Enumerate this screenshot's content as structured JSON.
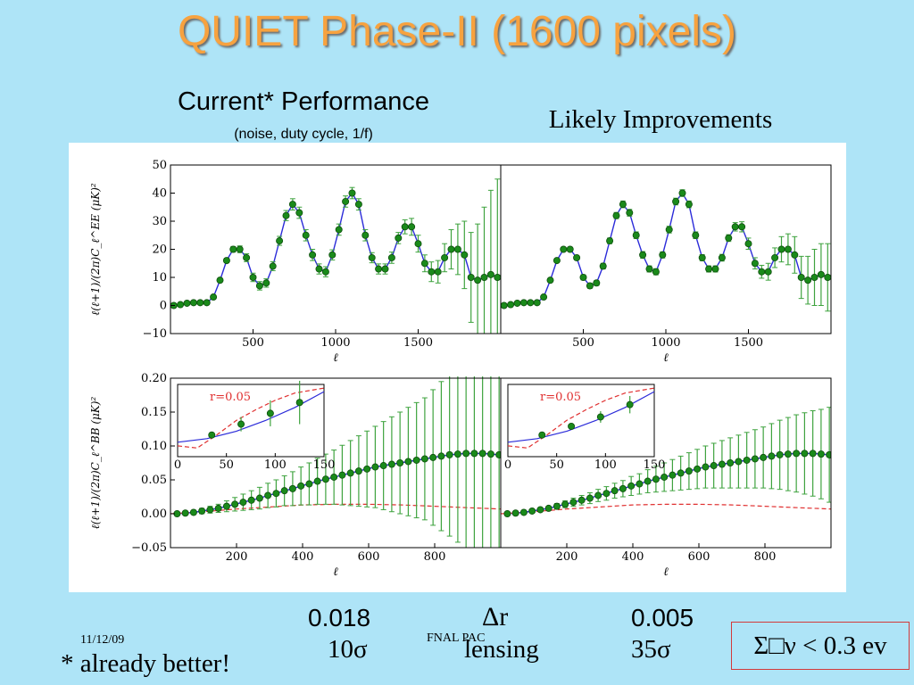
{
  "slide": {
    "title": "QUIET Phase-II (1600 pixels)",
    "left_heading": "Current* Performance",
    "left_note": "(noise, duty cycle, 1/f)",
    "right_heading": "Likely Improvements",
    "dr_left": "0.018",
    "dr_label": "Δr",
    "dr_right": "0.005",
    "sig_left": "10σ",
    "sig_label": "lensing",
    "sig_right": "35σ",
    "date": "11/12/09",
    "footer": "FNAL PAC",
    "footnote": "* already better!",
    "neutrino_box": "Σ□ν < 0.3 ev",
    "colors": {
      "title": "#f7a23f",
      "points": "#1a8a1a",
      "curve": "#2b2bd9",
      "r_curve": "#e03030",
      "box_border": "#d33a3a"
    }
  },
  "chart_data": [
    {
      "type": "line",
      "panel": "EE-current",
      "ylabel": "ℓ(ℓ+1)/(2π)C_ℓ^EE (μK)²",
      "xlabel": "ℓ",
      "xlim": [
        0,
        2000
      ],
      "ylim": [
        -10,
        50
      ],
      "xticks": [
        500,
        1000,
        1500
      ],
      "yticks": [
        -10,
        0,
        10,
        20,
        30,
        40,
        50
      ],
      "series": [
        {
          "x": [
            20,
            60,
            100,
            140,
            180,
            220,
            260,
            300,
            340,
            380,
            420,
            460,
            500,
            540,
            580,
            620,
            660,
            700,
            740,
            780,
            820,
            860,
            900,
            940,
            980,
            1020,
            1060,
            1100,
            1140,
            1180,
            1220,
            1260,
            1300,
            1340,
            1380,
            1420,
            1460,
            1500,
            1540,
            1580,
            1620,
            1660,
            1700,
            1740,
            1780,
            1820,
            1860,
            1900,
            1940,
            1980
          ],
          "y": [
            0,
            0.3,
            0.8,
            1,
            1,
            1,
            3,
            9,
            16,
            20,
            20,
            17,
            10,
            7,
            8,
            14,
            23,
            32,
            36,
            33,
            25,
            18,
            13,
            12,
            18,
            27,
            37,
            40,
            36,
            25,
            17,
            13,
            13,
            17,
            24,
            28,
            28,
            22,
            15,
            12,
            12,
            17,
            20,
            20,
            18,
            10,
            9,
            10,
            11,
            10
          ],
          "yerr": [
            0.3,
            0.3,
            0.3,
            0.3,
            0.4,
            0.5,
            0.6,
            0.7,
            0.8,
            1,
            1.2,
            1.4,
            1.5,
            1.5,
            1.5,
            1.6,
            1.6,
            1.8,
            2,
            2,
            2,
            2,
            1.8,
            1.8,
            1.8,
            2,
            2,
            2,
            2,
            2,
            1.8,
            1.8,
            1.8,
            2,
            2,
            2.5,
            3,
            3,
            3,
            3.5,
            4,
            5,
            7,
            9,
            12,
            16,
            20,
            25,
            30,
            35
          ]
        }
      ]
    },
    {
      "type": "line",
      "panel": "EE-improved",
      "xlabel": "ℓ",
      "xlim": [
        0,
        2000
      ],
      "ylim": [
        -10,
        50
      ],
      "xticks": [
        500,
        1000,
        1500
      ],
      "series": [
        {
          "x": [
            20,
            60,
            100,
            140,
            180,
            220,
            260,
            300,
            340,
            380,
            420,
            460,
            500,
            540,
            580,
            620,
            660,
            700,
            740,
            780,
            820,
            860,
            900,
            940,
            980,
            1020,
            1060,
            1100,
            1140,
            1180,
            1220,
            1260,
            1300,
            1340,
            1380,
            1420,
            1460,
            1500,
            1540,
            1580,
            1620,
            1660,
            1700,
            1740,
            1780,
            1820,
            1860,
            1900,
            1940,
            1980
          ],
          "y": [
            0,
            0.3,
            0.8,
            1,
            1,
            1,
            3,
            9,
            16,
            20,
            20,
            17,
            10,
            7,
            8,
            14,
            23,
            32,
            36,
            33,
            25,
            18,
            13,
            12,
            18,
            27,
            37,
            40,
            36,
            25,
            17,
            13,
            13,
            17,
            24,
            28,
            28,
            22,
            15,
            12,
            12,
            17,
            20,
            20,
            18,
            10,
            9,
            10,
            11,
            10
          ],
          "yerr": [
            0.2,
            0.2,
            0.2,
            0.2,
            0.2,
            0.3,
            0.3,
            0.4,
            0.5,
            0.6,
            0.7,
            0.8,
            0.9,
            0.9,
            0.9,
            1,
            1,
            1.1,
            1.2,
            1.2,
            1.2,
            1.2,
            1.1,
            1.1,
            1.1,
            1.2,
            1.2,
            1.2,
            1.2,
            1.2,
            1.1,
            1.1,
            1.1,
            1.2,
            1.2,
            1.5,
            1.8,
            2,
            2,
            2.3,
            3,
            3.5,
            4.5,
            5.5,
            6.5,
            7.5,
            8.5,
            10,
            11,
            12
          ]
        }
      ]
    },
    {
      "type": "line",
      "panel": "BB-current",
      "ylabel": "ℓ(ℓ+1)/(2π)C_ℓ^BB (μK)²",
      "xlabel": "ℓ",
      "xlim": [
        0,
        1000
      ],
      "ylim": [
        -0.05,
        0.2
      ],
      "xticks": [
        200,
        400,
        600,
        800
      ],
      "yticks": [
        -0.05,
        0.0,
        0.05,
        0.1,
        0.15,
        0.2
      ],
      "series": [
        {
          "x": [
            20,
            45,
            70,
            95,
            120,
            145,
            170,
            195,
            220,
            245,
            270,
            295,
            320,
            345,
            370,
            395,
            420,
            445,
            470,
            495,
            520,
            545,
            570,
            595,
            620,
            645,
            670,
            695,
            720,
            745,
            770,
            795,
            820,
            845,
            870,
            895,
            920,
            945,
            970,
            995
          ],
          "y": [
            0,
            0.001,
            0.002,
            0.004,
            0.006,
            0.008,
            0.011,
            0.014,
            0.017,
            0.02,
            0.023,
            0.027,
            0.03,
            0.034,
            0.037,
            0.041,
            0.044,
            0.048,
            0.051,
            0.054,
            0.057,
            0.06,
            0.063,
            0.066,
            0.069,
            0.071,
            0.073,
            0.075,
            0.077,
            0.079,
            0.081,
            0.083,
            0.085,
            0.087,
            0.088,
            0.089,
            0.089,
            0.089,
            0.088,
            0.087
          ],
          "yerr": [
            0.001,
            0.002,
            0.003,
            0.004,
            0.005,
            0.006,
            0.008,
            0.01,
            0.012,
            0.014,
            0.016,
            0.018,
            0.02,
            0.022,
            0.025,
            0.028,
            0.031,
            0.034,
            0.037,
            0.04,
            0.044,
            0.048,
            0.052,
            0.056,
            0.06,
            0.065,
            0.07,
            0.075,
            0.08,
            0.085,
            0.09,
            0.1,
            0.11,
            0.12,
            0.13,
            0.14,
            0.15,
            0.16,
            0.17,
            0.18
          ]
        },
        {
          "name": "r=0.05",
          "style": "dashed",
          "x": [
            0,
            100,
            200,
            300,
            400,
            500,
            600,
            700,
            800,
            900,
            1000
          ],
          "y": [
            0,
            0.003,
            0.007,
            0.01,
            0.013,
            0.014,
            0.014,
            0.013,
            0.011,
            0.009,
            0.007
          ]
        }
      ],
      "inset": {
        "xlim": [
          0,
          150
        ],
        "xticks": [
          0,
          50,
          100,
          150
        ],
        "label": "r=0.05",
        "points": {
          "x": [
            35,
            65,
            95,
            125
          ],
          "y": [
            0.3,
            0.45,
            0.6,
            0.75
          ],
          "yerr": [
            0.04,
            0.1,
            0.18,
            0.3
          ]
        }
      }
    },
    {
      "type": "line",
      "panel": "BB-improved",
      "xlabel": "ℓ",
      "xlim": [
        0,
        1000
      ],
      "ylim": [
        -0.05,
        0.2
      ],
      "xticks": [
        200,
        400,
        600,
        800
      ],
      "series": [
        {
          "x": [
            20,
            45,
            70,
            95,
            120,
            145,
            170,
            195,
            220,
            245,
            270,
            295,
            320,
            345,
            370,
            395,
            420,
            445,
            470,
            495,
            520,
            545,
            570,
            595,
            620,
            645,
            670,
            695,
            720,
            745,
            770,
            795,
            820,
            845,
            870,
            895,
            920,
            945,
            970,
            995
          ],
          "y": [
            0,
            0.001,
            0.002,
            0.004,
            0.006,
            0.008,
            0.011,
            0.014,
            0.017,
            0.02,
            0.023,
            0.027,
            0.03,
            0.034,
            0.037,
            0.041,
            0.044,
            0.048,
            0.051,
            0.054,
            0.057,
            0.06,
            0.063,
            0.066,
            0.069,
            0.071,
            0.073,
            0.075,
            0.077,
            0.079,
            0.081,
            0.083,
            0.085,
            0.087,
            0.088,
            0.089,
            0.089,
            0.089,
            0.088,
            0.087
          ],
          "yerr": [
            0.0005,
            0.001,
            0.0015,
            0.002,
            0.0025,
            0.003,
            0.004,
            0.005,
            0.006,
            0.007,
            0.008,
            0.009,
            0.01,
            0.011,
            0.012,
            0.014,
            0.015,
            0.017,
            0.019,
            0.021,
            0.023,
            0.025,
            0.027,
            0.029,
            0.031,
            0.033,
            0.035,
            0.037,
            0.039,
            0.041,
            0.043,
            0.045,
            0.048,
            0.051,
            0.054,
            0.057,
            0.06,
            0.063,
            0.066,
            0.07
          ]
        },
        {
          "name": "r=0.05",
          "style": "dashed",
          "x": [
            0,
            100,
            200,
            300,
            400,
            500,
            600,
            700,
            800,
            900,
            1000
          ],
          "y": [
            0,
            0.003,
            0.007,
            0.01,
            0.013,
            0.014,
            0.014,
            0.013,
            0.011,
            0.009,
            0.007
          ]
        }
      ],
      "inset": {
        "xlim": [
          0,
          150
        ],
        "xticks": [
          0,
          50,
          100,
          150
        ],
        "label": "r=0.05",
        "points": {
          "x": [
            35,
            65,
            95,
            125
          ],
          "y": [
            0.3,
            0.42,
            0.55,
            0.72
          ],
          "yerr": [
            0.02,
            0.04,
            0.08,
            0.12
          ]
        }
      }
    }
  ]
}
